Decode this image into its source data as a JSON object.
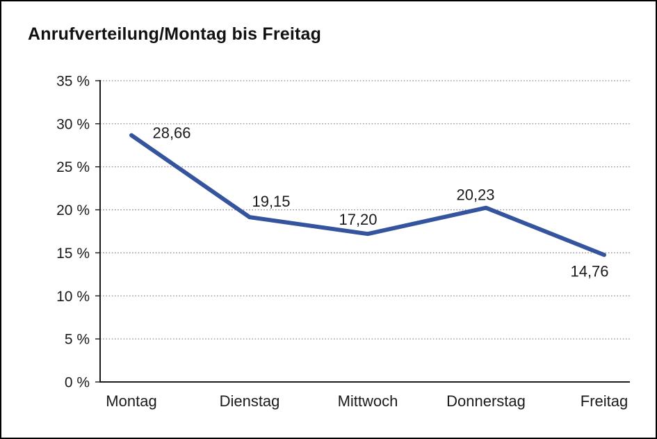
{
  "title": "Anrufverteilung/Montag bis Freitag",
  "chart_data": {
    "type": "line",
    "title": "Anrufverteilung/Montag bis Freitag",
    "categories": [
      "Montag",
      "Dienstag",
      "Mittwoch",
      "Donnerstag",
      "Freitag"
    ],
    "values": [
      28.66,
      19.15,
      17.2,
      20.23,
      14.76
    ],
    "value_labels": [
      "28,66",
      "19,15",
      "17,20",
      "20,23",
      "14,76"
    ],
    "y_tick_labels": [
      "0 %",
      "5 %",
      "10 %",
      "15 %",
      "20 %",
      "25 %",
      "30 %",
      "35 %"
    ],
    "ylim": [
      0,
      35
    ],
    "y_step": 5,
    "xlabel": "",
    "ylabel": "",
    "legend": "none",
    "grid": "horizontal-dotted",
    "colors": {
      "line": "#34549E",
      "axis": "#1a1a1a",
      "grid": "#8a8a8a",
      "text": "#1a1a1a"
    }
  }
}
